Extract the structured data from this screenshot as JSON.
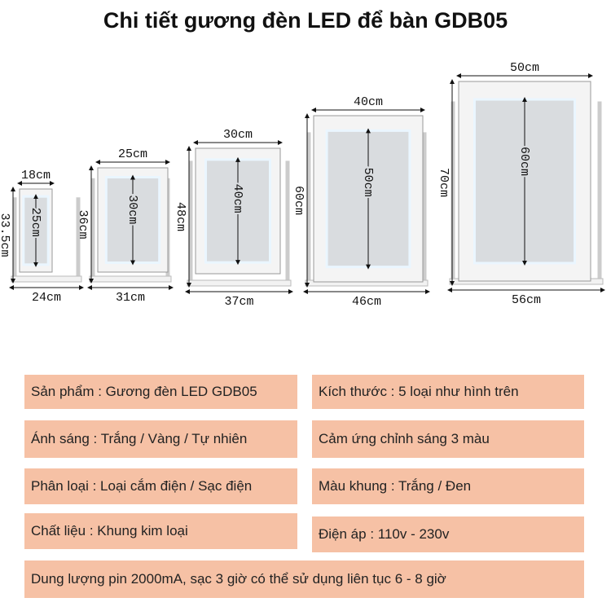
{
  "header": {
    "title": "Chi tiết gương đèn LED để bàn GDB05"
  },
  "mirrors": [
    {
      "width": "18cm",
      "height": "33.5cm",
      "glass_height": "25cm",
      "base_width": "24cm"
    },
    {
      "width": "25cm",
      "height": "36cm",
      "glass_height": "30cm",
      "base_width": "31cm"
    },
    {
      "width": "30cm",
      "height": "48cm",
      "glass_height": "40cm",
      "base_width": "37cm"
    },
    {
      "width": "40cm",
      "height": "60cm",
      "glass_height": "50cm",
      "base_width": "46cm"
    },
    {
      "width": "50cm",
      "height": "70cm",
      "glass_height": "60cm",
      "base_width": "56cm"
    }
  ],
  "specs": [
    "Sản phẩm : Gương đèn LED GDB05",
    "Kích thước : 5 loại như hình trên",
    "Ánh sáng : Trắng / Vàng / Tự nhiên",
    "Cảm ứng chỉnh sáng 3 màu",
    "Phân loại : Loại cắm điện / Sạc điện",
    "Màu khung : Trắng / Đen",
    "Chất liệu : Khung kim loại",
    "Điện áp : 110v - 230v",
    "Dung lượng pin 2000mA, sạc 3 giờ có thể sử dụng liên tục 6 - 8 giờ"
  ]
}
